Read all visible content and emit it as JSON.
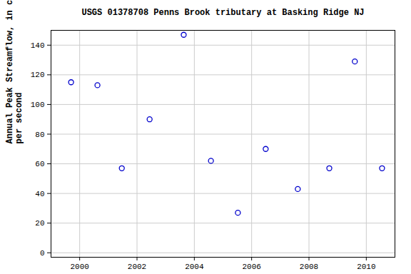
{
  "chart_data": {
    "type": "scatter",
    "title": "USGS 01378708 Penns Brook tributary at Basking Ridge NJ",
    "ylabel": "Annual Peak Streamflow, in cubic feet\nper second",
    "x": [
      1999.7,
      2000.62,
      2001.47,
      2002.44,
      2003.63,
      2004.58,
      2005.52,
      2006.49,
      2007.61,
      2008.71,
      2009.6,
      2010.55
    ],
    "values": [
      115,
      113,
      57,
      90,
      147,
      62,
      27,
      70,
      43,
      57,
      129,
      57
    ],
    "color": "#0000cc",
    "marker": "open_circle",
    "xlim": [
      1999,
      2011
    ],
    "xticks": [
      2000,
      2002,
      2004,
      2006,
      2008,
      2010
    ],
    "ylim": [
      -3,
      150
    ],
    "yticks": [
      0,
      20,
      40,
      60,
      80,
      100,
      120,
      140
    ],
    "grid": true
  }
}
